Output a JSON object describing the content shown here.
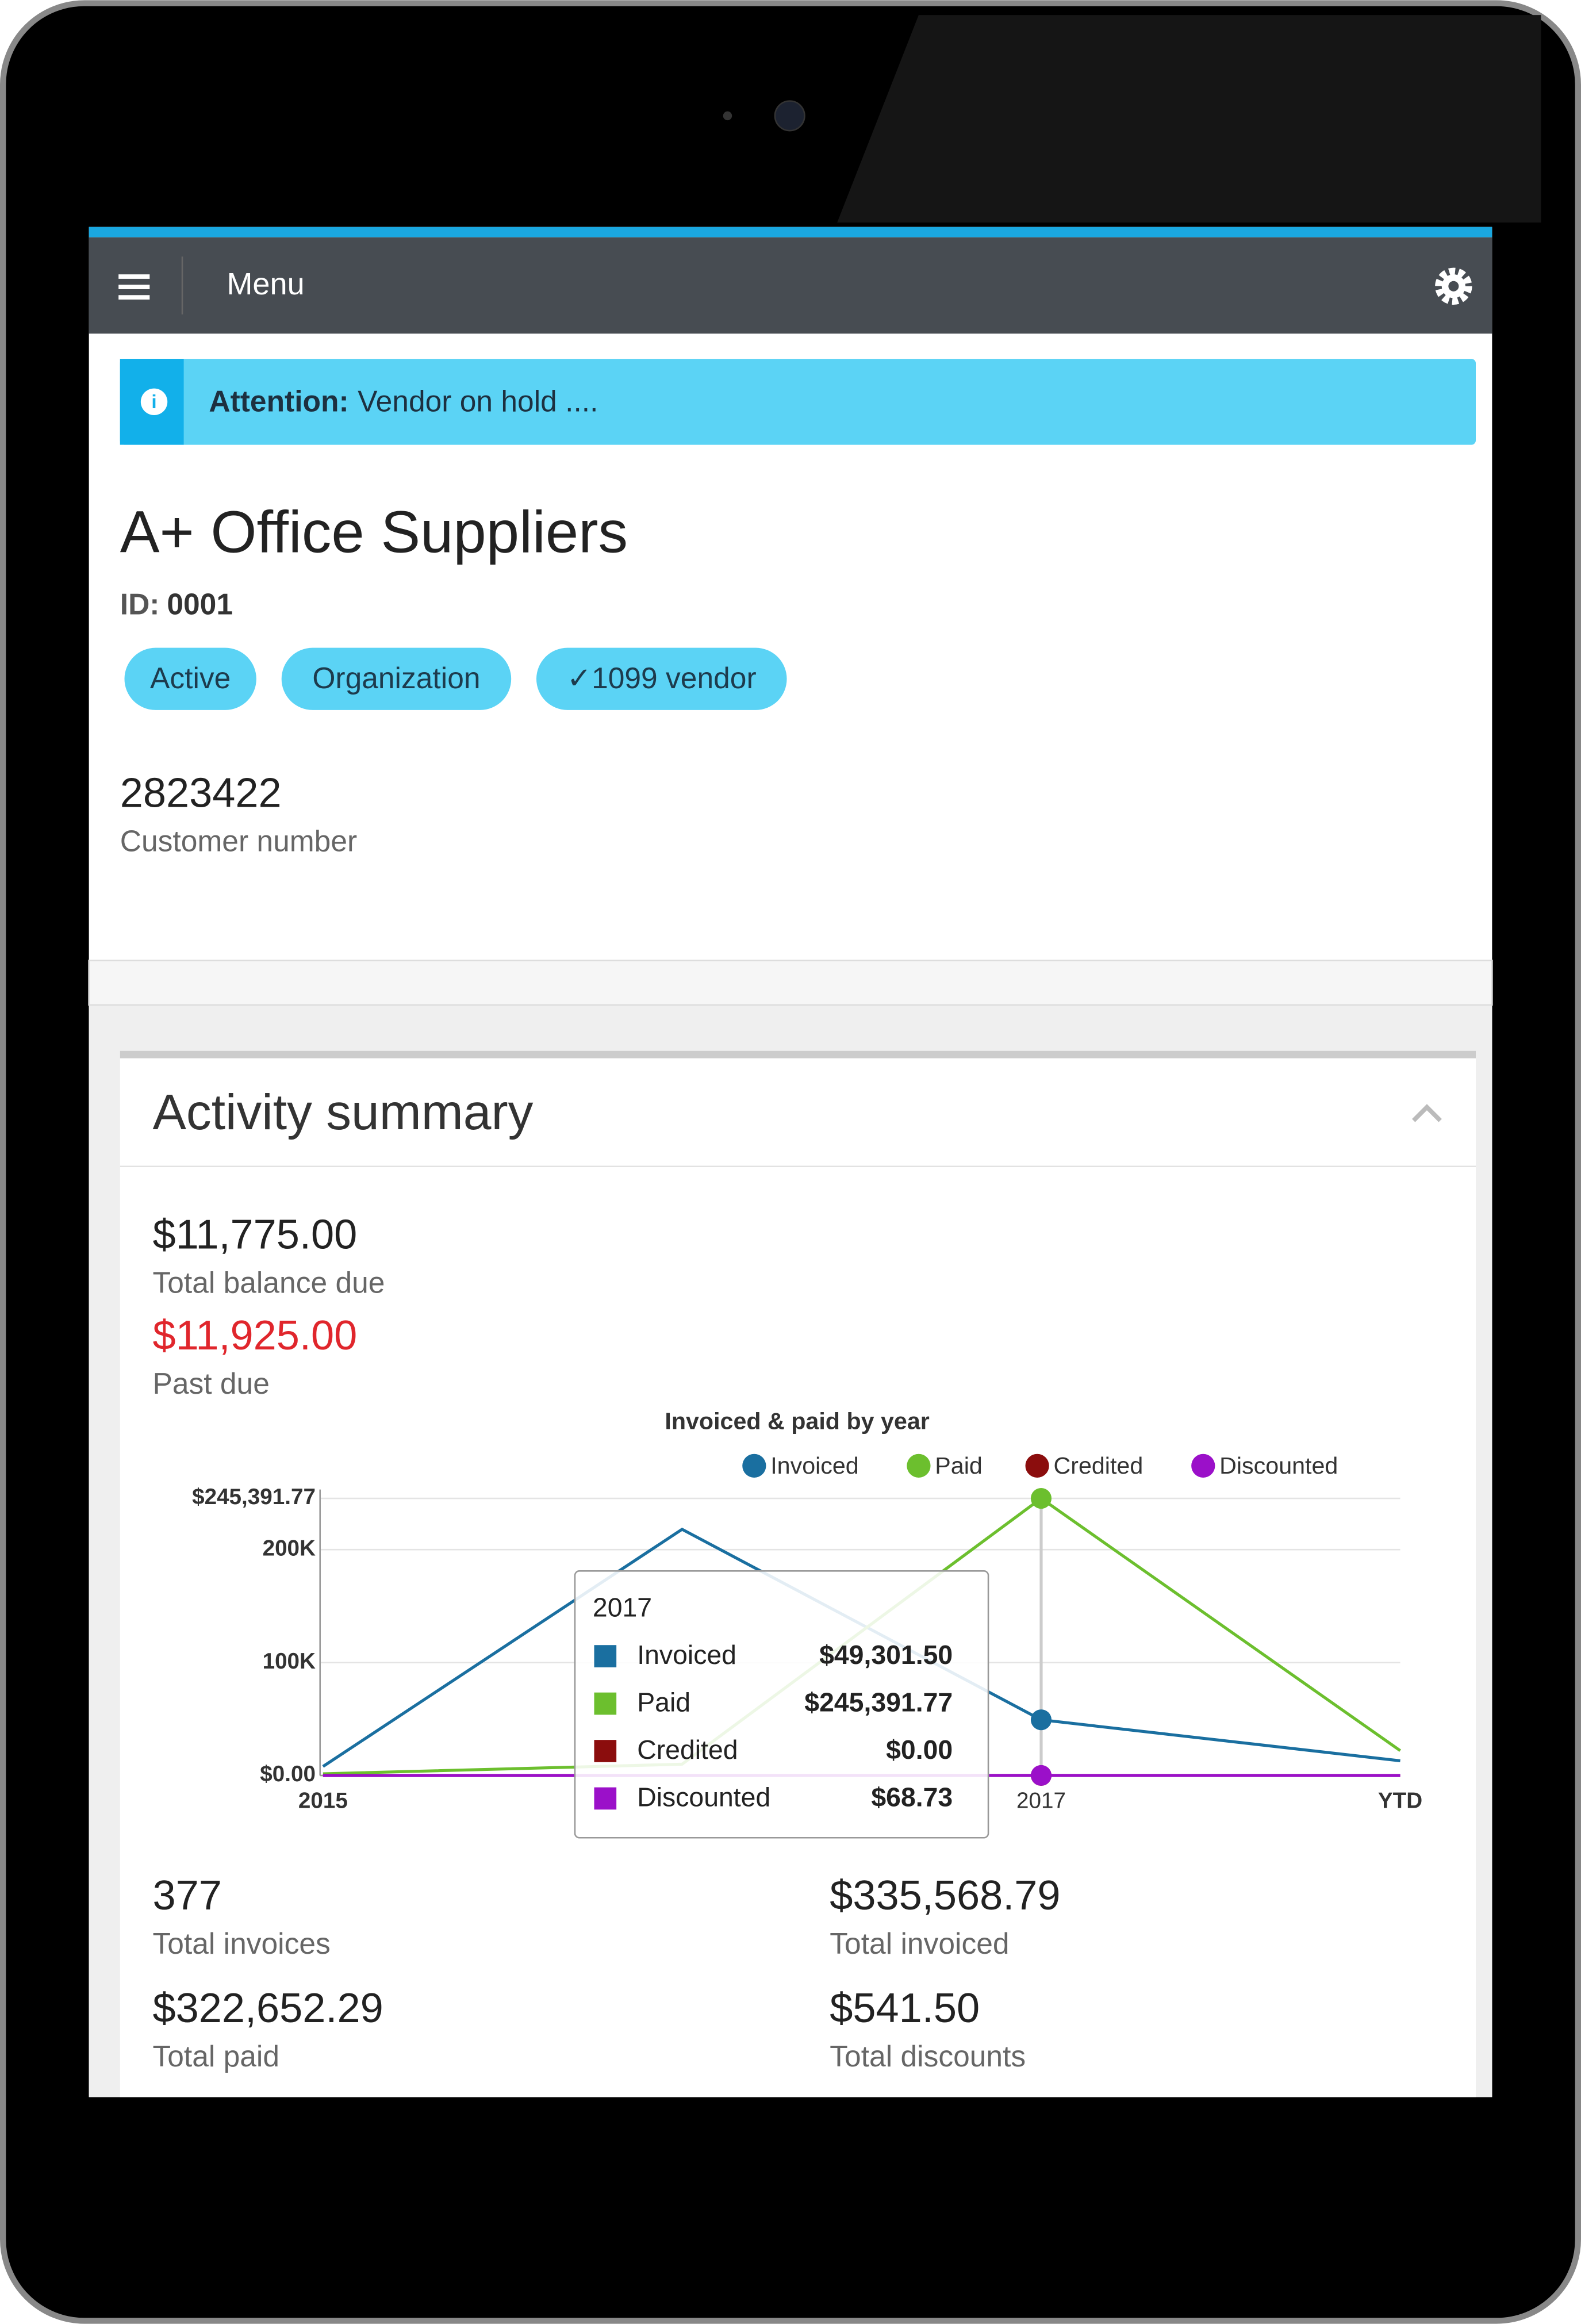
{
  "header": {
    "menu": "Menu"
  },
  "alert": {
    "label": "Attention:",
    "message": "Vendor on hold ...."
  },
  "vendor": {
    "name": "A+ Office Suppliers",
    "id_label": "ID:",
    "id": "0001",
    "tags": [
      "Active",
      "Organization",
      "✓1099 vendor"
    ],
    "customer_number": "2823422",
    "customer_number_label": "Customer number"
  },
  "activity": {
    "title": "Activity summary",
    "balance": {
      "value": "$11,775.00",
      "label": "Total balance due"
    },
    "past_due": {
      "value": "$11,925.00",
      "label": "Past due"
    },
    "stats": [
      {
        "value": "377",
        "label": "Total invoices"
      },
      {
        "value": "$335,568.79",
        "label": "Total invoiced"
      },
      {
        "value": "$322,652.29",
        "label": "Total paid"
      },
      {
        "value": "$541.50",
        "label": "Total discounts"
      }
    ]
  },
  "chart_data": {
    "type": "line",
    "title": "Invoiced & paid by year",
    "categories": [
      "2015",
      null,
      "2017",
      "YTD"
    ],
    "series": [
      {
        "name": "Invoiced",
        "color": "#1a6fa0",
        "values": [
          8000,
          218000,
          49301.5,
          13000
        ],
        "value_labels": [
          null,
          null,
          "$49,301.50",
          null
        ]
      },
      {
        "name": "Paid",
        "color": "#6cbf2e",
        "values": [
          1500,
          10000,
          245391.77,
          22000
        ],
        "value_labels": [
          null,
          null,
          "$245,391.77",
          null
        ]
      },
      {
        "name": "Credited",
        "color": "#8b0d0d",
        "values": [
          0,
          0,
          0,
          0
        ],
        "value_labels": [
          null,
          null,
          "$0.00",
          null
        ]
      },
      {
        "name": "Discounted",
        "color": "#9b10c9",
        "values": [
          0,
          0,
          68.73,
          0
        ],
        "value_labels": [
          null,
          null,
          "$68.73",
          null
        ]
      }
    ],
    "ylim": [
      0,
      245391.77
    ],
    "yticks": [
      {
        "value": 0,
        "label": "$0.00"
      },
      {
        "value": 100000,
        "label": "100K"
      },
      {
        "value": 200000,
        "label": "200K"
      },
      {
        "value": 245391.77,
        "label": "$245,391.77"
      }
    ],
    "grid": true,
    "legend": "top"
  }
}
